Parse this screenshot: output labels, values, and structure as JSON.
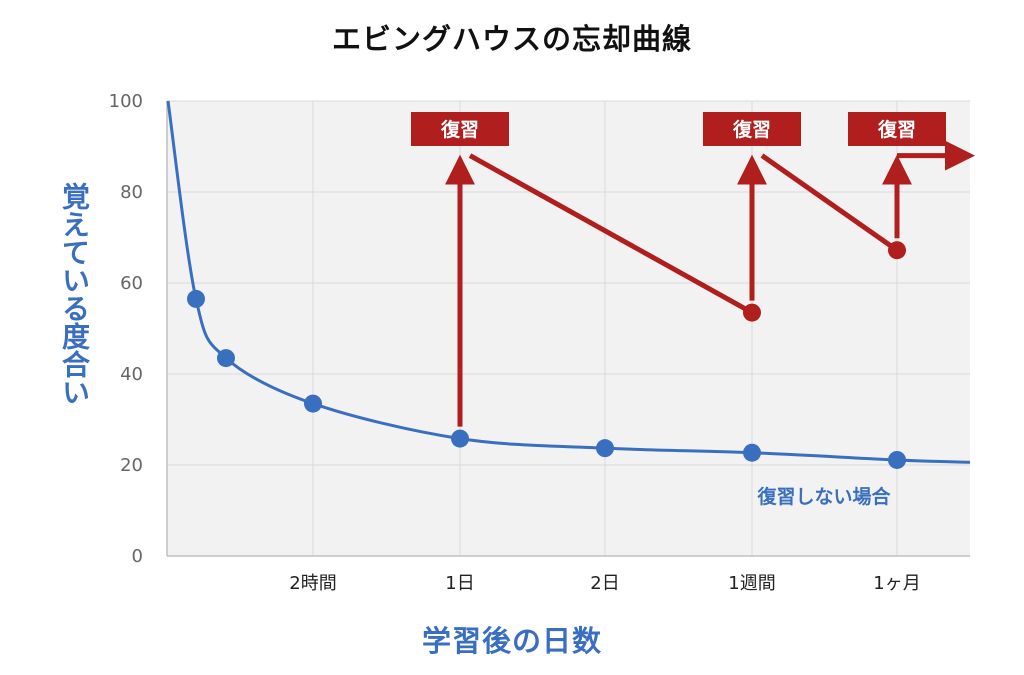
{
  "chart_data": {
    "type": "line",
    "title": "エビングハウスの忘却曲線",
    "xlabel": "学習後の日数",
    "ylabel": "覚えている度合い",
    "ylim": [
      0,
      100
    ],
    "yticks": [
      "0",
      "20",
      "40",
      "60",
      "80",
      "100"
    ],
    "grid": true,
    "x_tick_labels": [
      "2時間",
      "1日",
      "2日",
      "1週間",
      "1ヶ月"
    ],
    "series": [
      {
        "name": "復習しない場合",
        "color": "#3a6fc0",
        "points": [
          {
            "x": "",
            "y": 56.5
          },
          {
            "x": "",
            "y": 43.5
          },
          {
            "x": "2時間",
            "y": 33.5
          },
          {
            "x": "1日",
            "y": 25.8
          },
          {
            "x": "2日",
            "y": 23.7
          },
          {
            "x": "1週間",
            "y": 22.7
          },
          {
            "x": "1ヶ月",
            "y": 21.1
          }
        ]
      },
      {
        "color": "#b11e1e",
        "points": [
          {
            "x": "1日",
            "y": 88
          },
          {
            "x": "1週間",
            "y": 53.5
          },
          {
            "x": "1週間",
            "y": 88
          },
          {
            "x": "1ヶ月",
            "y": 67.2
          },
          {
            "x": "1ヶ月",
            "y": 88
          }
        ]
      }
    ],
    "annotations": [
      {
        "text": "復習",
        "at": "1日"
      },
      {
        "text": "復習",
        "at": "1週間"
      },
      {
        "text": "復習",
        "at": "1ヶ月"
      }
    ]
  }
}
